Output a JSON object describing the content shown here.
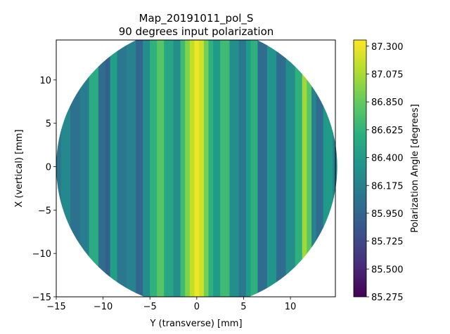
{
  "chart_data": {
    "type": "heatmap",
    "title": "Map_20191011_pol_S",
    "subtitle": "90 degrees input polarization",
    "xlabel": "Y (transverse) [mm]",
    "ylabel": "X (vertical) [mm]",
    "xlim": [
      -15,
      14.8
    ],
    "ylim": [
      -15,
      14.6
    ],
    "xticks": [
      -15,
      -10,
      -5,
      0,
      5,
      10
    ],
    "yticks": [
      -15,
      -10,
      -5,
      0,
      5,
      10
    ],
    "colormap": "viridis",
    "colorbar": {
      "label": "Polarization Angle [degrees]",
      "range": [
        85.275,
        87.35
      ],
      "ticks": [
        "85.275",
        "85.500",
        "85.725",
        "85.950",
        "86.175",
        "86.400",
        "86.625",
        "86.850",
        "87.075",
        "87.300"
      ]
    },
    "map_shape": "circle",
    "map_center": [
      0,
      0
    ],
    "map_radius_mm": 15,
    "y_profile": [
      {
        "y": -15.0,
        "value": 86.1
      },
      {
        "y": -14.0,
        "value": 86.25
      },
      {
        "y": -13.0,
        "value": 86.05
      },
      {
        "y": -12.0,
        "value": 86.15
      },
      {
        "y": -11.0,
        "value": 86.55
      },
      {
        "y": -10.0,
        "value": 86.0
      },
      {
        "y": -9.5,
        "value": 85.9
      },
      {
        "y": -9.0,
        "value": 86.45
      },
      {
        "y": -8.0,
        "value": 86.1
      },
      {
        "y": -7.0,
        "value": 86.2
      },
      {
        "y": -6.0,
        "value": 85.95
      },
      {
        "y": -5.5,
        "value": 86.3
      },
      {
        "y": -4.5,
        "value": 86.6
      },
      {
        "y": -4.0,
        "value": 86.8
      },
      {
        "y": -3.0,
        "value": 86.5
      },
      {
        "y": -2.0,
        "value": 86.3
      },
      {
        "y": -1.5,
        "value": 86.7
      },
      {
        "y": -1.0,
        "value": 86.95
      },
      {
        "y": -0.5,
        "value": 87.15
      },
      {
        "y": 0.0,
        "value": 87.3
      },
      {
        "y": 0.5,
        "value": 87.2
      },
      {
        "y": 1.0,
        "value": 86.9
      },
      {
        "y": 1.5,
        "value": 86.6
      },
      {
        "y": 2.0,
        "value": 86.4
      },
      {
        "y": 3.0,
        "value": 86.7
      },
      {
        "y": 4.0,
        "value": 86.3
      },
      {
        "y": 5.0,
        "value": 86.1
      },
      {
        "y": 5.5,
        "value": 86.4
      },
      {
        "y": 6.0,
        "value": 86.6
      },
      {
        "y": 7.0,
        "value": 86.0
      },
      {
        "y": 8.0,
        "value": 86.35
      },
      {
        "y": 9.0,
        "value": 86.0
      },
      {
        "y": 10.0,
        "value": 86.3
      },
      {
        "y": 11.0,
        "value": 86.6
      },
      {
        "y": 11.5,
        "value": 87.05
      },
      {
        "y": 12.0,
        "value": 86.8
      },
      {
        "y": 12.5,
        "value": 86.2
      },
      {
        "y": 13.0,
        "value": 86.0
      },
      {
        "y": 14.0,
        "value": 86.4
      },
      {
        "y": 15.0,
        "value": 86.2
      }
    ],
    "grid": false
  }
}
